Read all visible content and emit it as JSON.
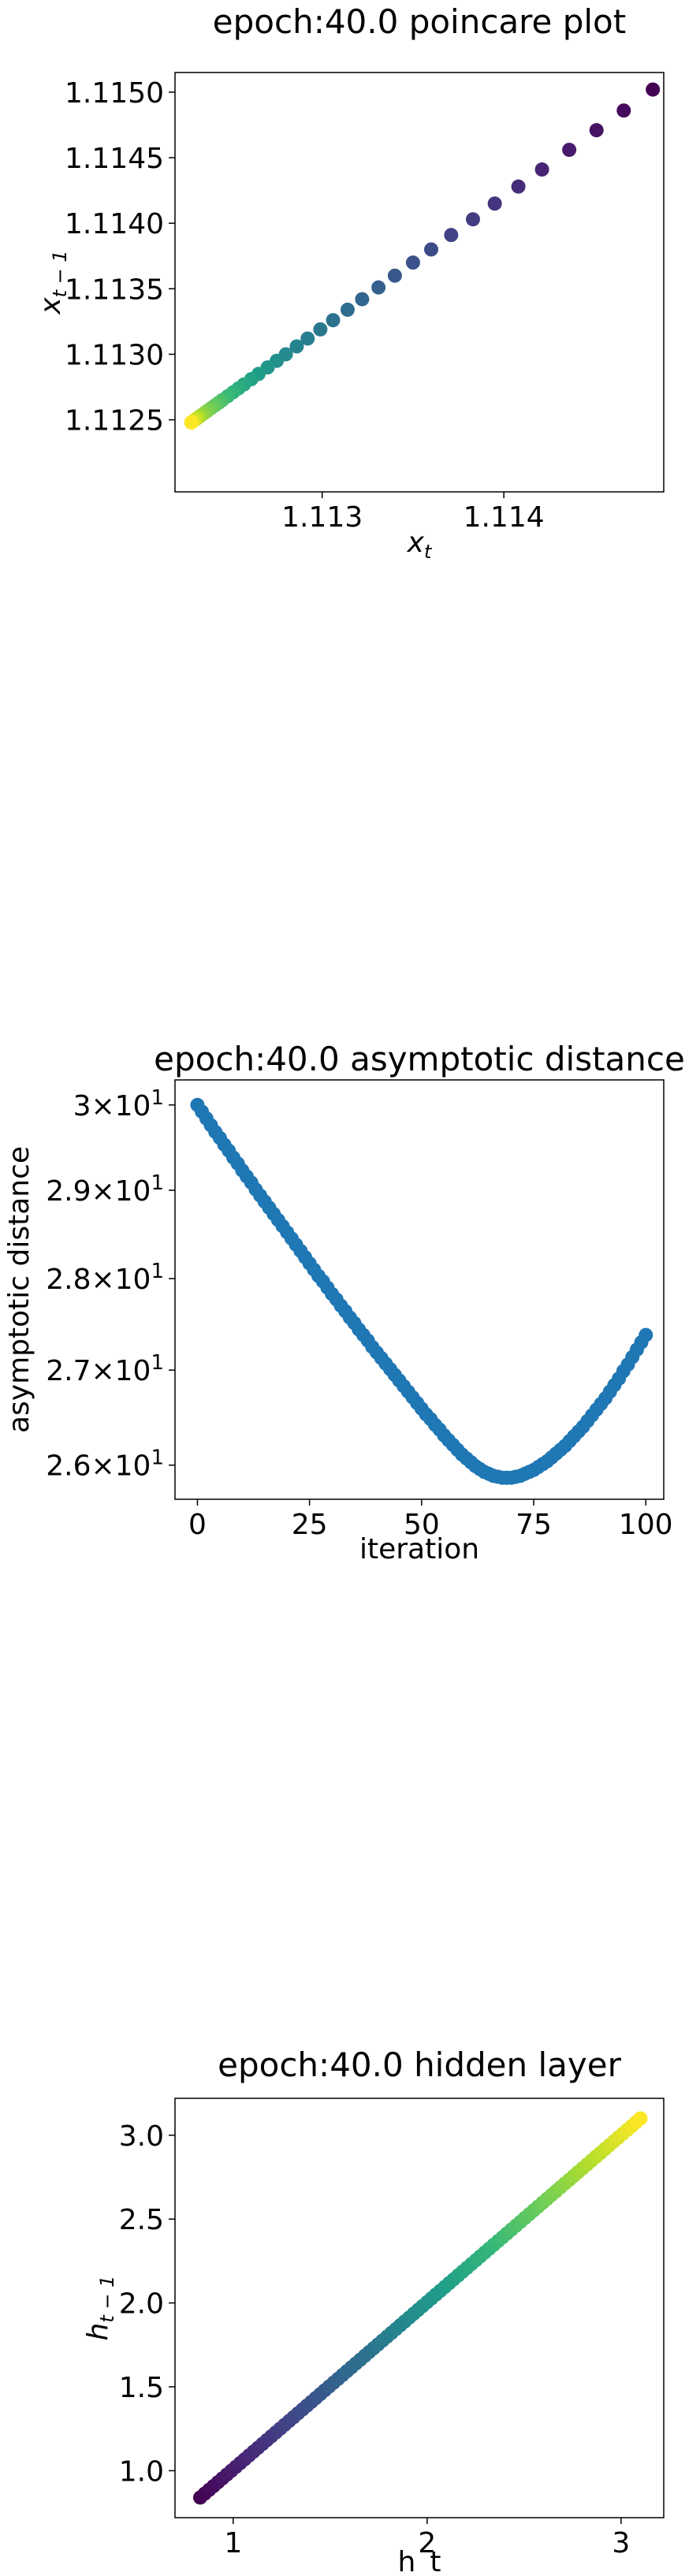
{
  "chart_data": [
    {
      "type": "scatter",
      "title": "epoch:40.0 poincare plot",
      "xlabel": "x_t",
      "ylabel": "x_{t-1}",
      "xlim": [
        1.11219,
        1.11488
      ],
      "ylim": [
        1.11195,
        1.11515
      ],
      "xticks": [
        1.113,
        1.114
      ],
      "xtick_labels": [
        "1.113",
        "1.114"
      ],
      "yticks": [
        1.1125,
        1.113,
        1.1135,
        1.114,
        1.1145,
        1.115
      ],
      "ytick_labels": [
        "1.1125",
        "1.1130",
        "1.1135",
        "1.1140",
        "1.1145",
        "1.1150"
      ],
      "colormap": "viridis",
      "x": [
        1.11482,
        1.11466,
        1.11451,
        1.11436,
        1.11421,
        1.11408,
        1.11395,
        1.11383,
        1.11371,
        1.1136,
        1.1135,
        1.1134,
        1.11331,
        1.11322,
        1.11314,
        1.11306,
        1.11299,
        1.11292,
        1.11286,
        1.1128,
        1.11275,
        1.1127,
        1.11265,
        1.11261,
        1.11257,
        1.11254,
        1.11251,
        1.11248,
        1.11245,
        1.11243,
        1.11241,
        1.11239,
        1.11237,
        1.11235,
        1.11233,
        1.11232,
        1.11231,
        1.1123,
        1.11229,
        1.11228,
        1.11228
      ],
      "y": [
        1.11502,
        1.11486,
        1.11471,
        1.11456,
        1.11441,
        1.11428,
        1.11415,
        1.11403,
        1.11391,
        1.1138,
        1.1137,
        1.1136,
        1.11351,
        1.11342,
        1.11334,
        1.11326,
        1.11319,
        1.11312,
        1.11306,
        1.113,
        1.11295,
        1.1129,
        1.11285,
        1.11281,
        1.11277,
        1.11274,
        1.11271,
        1.11268,
        1.11265,
        1.11263,
        1.11261,
        1.11259,
        1.11257,
        1.11255,
        1.11253,
        1.11252,
        1.11251,
        1.1125,
        1.11249,
        1.11248,
        1.11248
      ]
    },
    {
      "type": "scatter",
      "title": "epoch:40.0 asymptotic distance",
      "xlabel": "iteration",
      "ylabel": "asymptotic distance",
      "yscale": "log",
      "xlim": [
        -5,
        104
      ],
      "ylim": [
        25.65,
        30.3
      ],
      "xticks": [
        0,
        25,
        50,
        75,
        100
      ],
      "xtick_labels": [
        "0",
        "25",
        "50",
        "75",
        "100"
      ],
      "yticks": [
        26,
        27,
        28,
        29,
        30
      ],
      "ytick_mantissas": [
        "2.6",
        "2.7",
        "2.8",
        "2.9",
        "3"
      ],
      "ytick_base": "10",
      "ytick_exponent": "1",
      "color": "#1f77b4",
      "x_start": 0,
      "y": [
        30.0,
        29.92,
        29.84,
        29.76,
        29.68,
        29.61,
        29.53,
        29.46,
        29.38,
        29.31,
        29.23,
        29.16,
        29.09,
        29.01,
        28.94,
        28.87,
        28.8,
        28.73,
        28.66,
        28.59,
        28.52,
        28.45,
        28.38,
        28.31,
        28.24,
        28.17,
        28.1,
        28.03,
        27.97,
        27.9,
        27.83,
        27.77,
        27.7,
        27.64,
        27.57,
        27.51,
        27.44,
        27.38,
        27.32,
        27.25,
        27.19,
        27.13,
        27.07,
        27.01,
        26.95,
        26.89,
        26.83,
        26.77,
        26.71,
        26.65,
        26.59,
        26.53,
        26.48,
        26.42,
        26.37,
        26.31,
        26.26,
        26.21,
        26.16,
        26.11,
        26.07,
        26.03,
        25.99,
        25.96,
        25.93,
        25.91,
        25.89,
        25.88,
        25.87,
        25.87,
        25.87,
        25.88,
        25.89,
        25.91,
        25.93,
        25.95,
        25.98,
        26.01,
        26.04,
        26.08,
        26.12,
        26.16,
        26.2,
        26.25,
        26.3,
        26.35,
        26.4,
        26.46,
        26.52,
        26.58,
        26.64,
        26.7,
        26.77,
        26.84,
        26.91,
        26.99,
        27.06,
        27.14,
        27.22,
        27.3,
        27.38
      ]
    },
    {
      "type": "scatter",
      "title": "epoch:40.0 hidden layer",
      "xlabel": "h_t",
      "ylabel": "h_{t-1}",
      "xlim": [
        0.7,
        3.22
      ],
      "ylim": [
        0.72,
        3.22
      ],
      "xticks": [
        1,
        2,
        3
      ],
      "xtick_labels": [
        "1",
        "2",
        "3"
      ],
      "yticks": [
        1.0,
        1.5,
        2.0,
        2.5,
        3.0
      ],
      "ytick_labels": [
        "1.0",
        "1.5",
        "2.0",
        "2.5",
        "3.0"
      ],
      "colormap": "viridis",
      "line": {
        "x_start": 0.83,
        "x_end": 3.1,
        "y_start": 0.84,
        "y_end": 3.1,
        "count": 100
      }
    }
  ]
}
